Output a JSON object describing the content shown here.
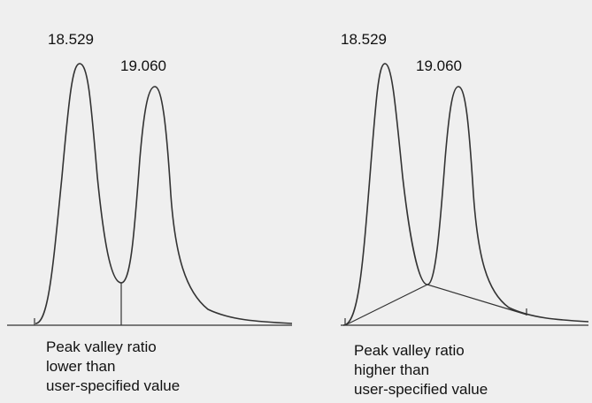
{
  "panels": [
    {
      "peaks": [
        "18.529",
        "19.060"
      ],
      "caption": [
        "Peak valley ratio",
        "lower than",
        "user-specified value"
      ]
    },
    {
      "peaks": [
        "18.529",
        "19.060"
      ],
      "caption": [
        "Peak valley ratio",
        "higher than",
        "user-specified value"
      ]
    }
  ]
}
